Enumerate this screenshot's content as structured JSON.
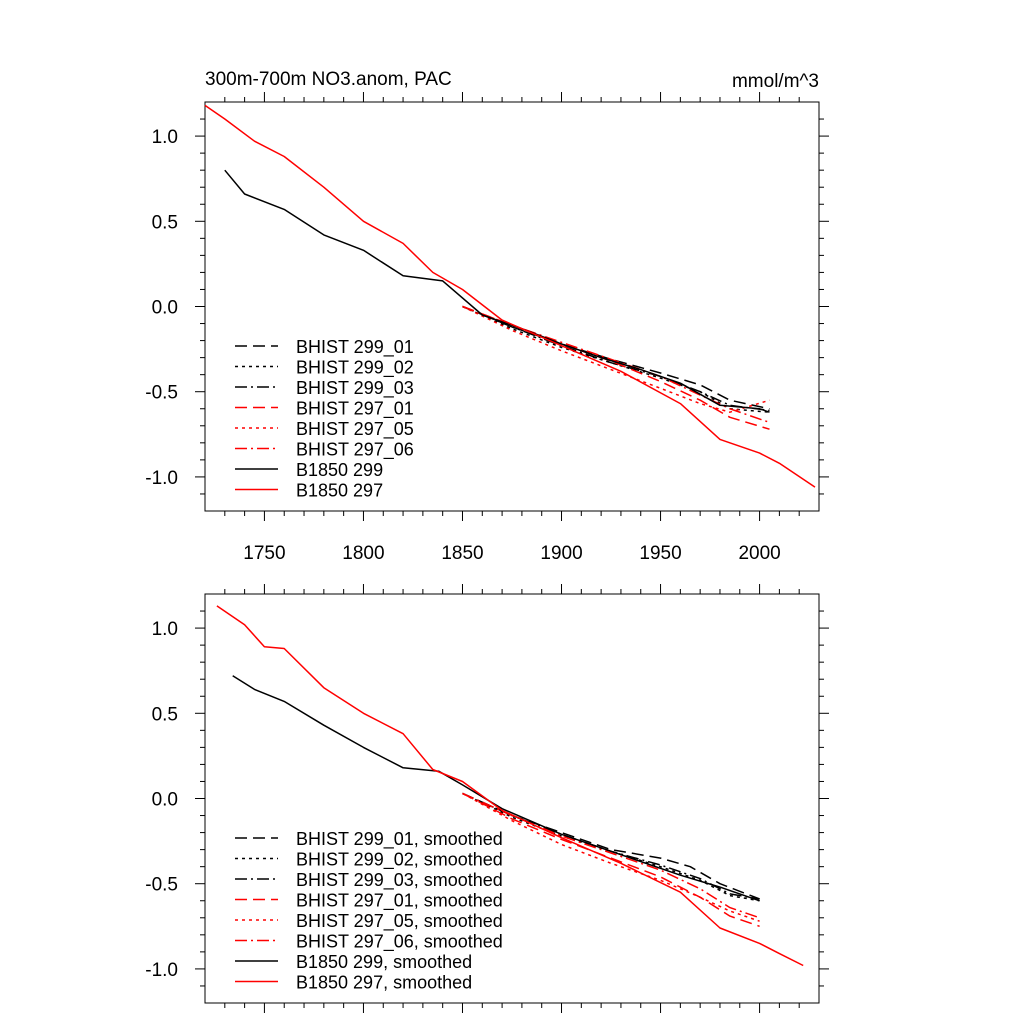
{
  "figure": {
    "title_left": "300m-700m NO3.anom, PAC",
    "title_right": "mmol/m^3"
  },
  "colors": {
    "black": "#000000",
    "red": "#ff0000"
  },
  "chart_data": [
    {
      "type": "line",
      "title": "300m-700m NO3.anom, PAC",
      "units": "mmol/m^3",
      "xlim": [
        1720,
        2030
      ],
      "ylim": [
        -1.2,
        1.2
      ],
      "xticks": [
        1750,
        1800,
        1850,
        1900,
        1950,
        2000
      ],
      "xtick_labels": [
        "1750",
        "1800",
        "1850",
        "1900",
        "1950",
        "2000"
      ],
      "yticks": [
        1.0,
        0.5,
        0.0,
        -0.5,
        -1.0
      ],
      "ytick_labels": [
        "1.0",
        "0.5",
        "0.0",
        "-0.5",
        "-1.0"
      ],
      "legend_position": "lower-left",
      "series": [
        {
          "name": "BHIST 299_01",
          "color": "#000000",
          "dash": "dashed",
          "x": [
            1850,
            1875,
            1900,
            1925,
            1950,
            1970,
            1985,
            2005
          ],
          "y": [
            0.0,
            -0.12,
            -0.22,
            -0.31,
            -0.39,
            -0.46,
            -0.55,
            -0.6
          ]
        },
        {
          "name": "BHIST 299_02",
          "color": "#000000",
          "dash": "dotted",
          "x": [
            1850,
            1875,
            1900,
            1925,
            1950,
            1970,
            1985,
            2005
          ],
          "y": [
            0.0,
            -0.13,
            -0.24,
            -0.33,
            -0.42,
            -0.5,
            -0.6,
            -0.62
          ]
        },
        {
          "name": "BHIST 299_03",
          "color": "#000000",
          "dash": "dashdot",
          "x": [
            1850,
            1875,
            1900,
            1925,
            1950,
            1970,
            1985,
            2005
          ],
          "y": [
            0.0,
            -0.12,
            -0.23,
            -0.33,
            -0.41,
            -0.5,
            -0.58,
            -0.61
          ]
        },
        {
          "name": "BHIST 297_01",
          "color": "#ff0000",
          "dash": "dashed",
          "x": [
            1850,
            1875,
            1900,
            1925,
            1950,
            1970,
            1985,
            2005
          ],
          "y": [
            0.0,
            -0.11,
            -0.22,
            -0.32,
            -0.44,
            -0.55,
            -0.65,
            -0.72
          ]
        },
        {
          "name": "BHIST 297_05",
          "color": "#ff0000",
          "dash": "dotted",
          "x": [
            1850,
            1875,
            1900,
            1925,
            1950,
            1970,
            1985,
            2005
          ],
          "y": [
            0.0,
            -0.14,
            -0.26,
            -0.37,
            -0.48,
            -0.57,
            -0.62,
            -0.55
          ]
        },
        {
          "name": "BHIST 297_06",
          "color": "#ff0000",
          "dash": "dashdot",
          "x": [
            1850,
            1875,
            1900,
            1925,
            1950,
            1970,
            1985,
            2005
          ],
          "y": [
            0.0,
            -0.11,
            -0.21,
            -0.31,
            -0.41,
            -0.52,
            -0.6,
            -0.68
          ]
        },
        {
          "name": "B1850 299",
          "color": "#000000",
          "dash": "solid",
          "x": [
            1730,
            1740,
            1760,
            1780,
            1800,
            1820,
            1840,
            1860,
            1880,
            1900,
            1920,
            1940,
            1960,
            1980,
            2000,
            2005
          ],
          "y": [
            0.8,
            0.66,
            0.57,
            0.42,
            0.33,
            0.18,
            0.15,
            -0.05,
            -0.13,
            -0.22,
            -0.3,
            -0.37,
            -0.45,
            -0.58,
            -0.6,
            -0.62
          ]
        },
        {
          "name": "B1850 297",
          "color": "#ff0000",
          "dash": "solid",
          "x": [
            1720,
            1730,
            1745,
            1760,
            1780,
            1800,
            1820,
            1835,
            1850,
            1870,
            1900,
            1930,
            1960,
            1980,
            2000,
            2010,
            2028
          ],
          "y": [
            1.18,
            1.1,
            0.97,
            0.88,
            0.7,
            0.5,
            0.37,
            0.2,
            0.1,
            -0.08,
            -0.23,
            -0.38,
            -0.57,
            -0.78,
            -0.86,
            -0.92,
            -1.06
          ]
        }
      ]
    },
    {
      "type": "line",
      "xlim": [
        1720,
        2030
      ],
      "ylim": [
        -1.2,
        1.2
      ],
      "xticks": [
        1750,
        1800,
        1850,
        1900,
        1950,
        2000
      ],
      "yticks": [
        1.0,
        0.5,
        0.0,
        -0.5,
        -1.0
      ],
      "ytick_labels": [
        "1.0",
        "0.5",
        "0.0",
        "-0.5",
        "-1.0"
      ],
      "legend_position": "lower-left",
      "series": [
        {
          "name": "BHIST 299_01, smoothed",
          "color": "#000000",
          "dash": "dashed",
          "x": [
            1850,
            1875,
            1900,
            1925,
            1950,
            1965,
            1980,
            2000
          ],
          "y": [
            0.03,
            -0.1,
            -0.2,
            -0.3,
            -0.35,
            -0.4,
            -0.5,
            -0.59
          ]
        },
        {
          "name": "BHIST 299_02, smoothed",
          "color": "#000000",
          "dash": "dotted",
          "x": [
            1850,
            1875,
            1900,
            1925,
            1950,
            1970,
            1985,
            2000
          ],
          "y": [
            0.03,
            -0.11,
            -0.22,
            -0.31,
            -0.4,
            -0.48,
            -0.57,
            -0.6
          ]
        },
        {
          "name": "BHIST 299_03, smoothed",
          "color": "#000000",
          "dash": "dashdot",
          "x": [
            1850,
            1875,
            1900,
            1925,
            1950,
            1970,
            1985,
            2000
          ],
          "y": [
            0.03,
            -0.1,
            -0.21,
            -0.31,
            -0.39,
            -0.47,
            -0.56,
            -0.59
          ]
        },
        {
          "name": "BHIST 297_01, smoothed",
          "color": "#ff0000",
          "dash": "dashed",
          "x": [
            1850,
            1875,
            1900,
            1925,
            1950,
            1970,
            1985,
            2000
          ],
          "y": [
            0.03,
            -0.12,
            -0.24,
            -0.35,
            -0.46,
            -0.58,
            -0.69,
            -0.75
          ]
        },
        {
          "name": "BHIST 297_05, smoothed",
          "color": "#ff0000",
          "dash": "dotted",
          "x": [
            1850,
            1875,
            1900,
            1925,
            1950,
            1970,
            1985,
            2000
          ],
          "y": [
            0.03,
            -0.13,
            -0.27,
            -0.38,
            -0.48,
            -0.58,
            -0.66,
            -0.72
          ]
        },
        {
          "name": "BHIST 297_06, smoothed",
          "color": "#ff0000",
          "dash": "dashdot",
          "x": [
            1850,
            1875,
            1900,
            1925,
            1950,
            1970,
            1985,
            2000
          ],
          "y": [
            0.03,
            -0.1,
            -0.22,
            -0.32,
            -0.42,
            -0.53,
            -0.64,
            -0.7
          ]
        },
        {
          "name": "B1850 299, smoothed",
          "color": "#000000",
          "dash": "solid",
          "x": [
            1734,
            1745,
            1760,
            1780,
            1800,
            1820,
            1838,
            1850,
            1870,
            1900,
            1930,
            1960,
            1980,
            2000
          ],
          "y": [
            0.72,
            0.64,
            0.57,
            0.43,
            0.3,
            0.18,
            0.16,
            0.08,
            -0.06,
            -0.21,
            -0.33,
            -0.45,
            -0.52,
            -0.6
          ]
        },
        {
          "name": "B1850 297, smoothed",
          "color": "#ff0000",
          "dash": "solid",
          "x": [
            1726,
            1740,
            1750,
            1760,
            1780,
            1800,
            1820,
            1835,
            1850,
            1870,
            1900,
            1930,
            1960,
            1980,
            2000,
            2010,
            2022
          ],
          "y": [
            1.13,
            1.02,
            0.89,
            0.88,
            0.65,
            0.5,
            0.38,
            0.17,
            0.1,
            -0.07,
            -0.23,
            -0.38,
            -0.55,
            -0.76,
            -0.85,
            -0.91,
            -0.98
          ]
        }
      ]
    }
  ]
}
